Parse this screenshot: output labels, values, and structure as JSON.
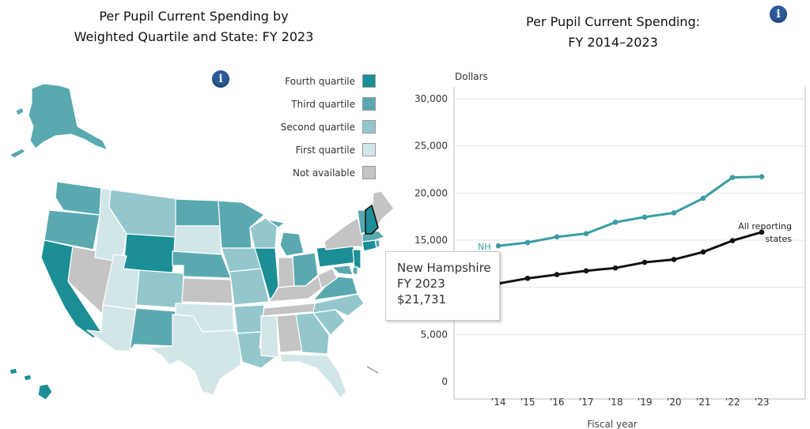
{
  "map": {
    "title_line1": "Per Pupil Current Spending by",
    "title_line2": "Weighted Quartile and State: FY 2023",
    "info_glyph": "i",
    "legend": [
      {
        "label": "Fourth quartile",
        "color": "#1b8e96"
      },
      {
        "label": "Third quartile",
        "color": "#5aa9b0"
      },
      {
        "label": "Second quartile",
        "color": "#93c7cc"
      },
      {
        "label": "First quartile",
        "color": "#d2e6e8"
      },
      {
        "label": "Not available",
        "color": "#c4c4c4"
      }
    ],
    "highlighted_state": "New Hampshire"
  },
  "chart": {
    "title_line1": "Per Pupil Current Spending:",
    "title_line2": "FY 2014–2023",
    "info_glyph": "i",
    "tooltip": {
      "state": "New Hampshire",
      "year": "FY 2023",
      "value": "$21,731"
    }
  },
  "chart_data": {
    "type": "line",
    "title": "Per Pupil Current Spending: FY 2014–2023",
    "ylabel": "Dollars",
    "xlabel": "Fiscal year",
    "categories": [
      "’14",
      "’15",
      "’16",
      "’17",
      "’18",
      "’19",
      "’20",
      "’21",
      "’22",
      "’23"
    ],
    "ylim": [
      0,
      30000
    ],
    "yticks": [
      0,
      5000,
      10000,
      15000,
      20000,
      25000,
      30000
    ],
    "ytick_labels": [
      "0",
      "5,000",
      "10,000",
      "15,000",
      "20,000",
      "25,000",
      "30,000"
    ],
    "series": [
      {
        "name": "NH",
        "color": "#3a9da5",
        "values": [
          14400,
          14750,
          15350,
          15700,
          16900,
          17450,
          17900,
          19450,
          21650,
          21731
        ]
      },
      {
        "name": "All reporting states",
        "color": "#111111",
        "values": [
          10400,
          10950,
          11350,
          11750,
          12050,
          12650,
          12950,
          13750,
          14950,
          15850
        ]
      }
    ],
    "annotations": {
      "nh_label": "NH",
      "all_label_line1": "All reporting",
      "all_label_line2": "states"
    }
  }
}
